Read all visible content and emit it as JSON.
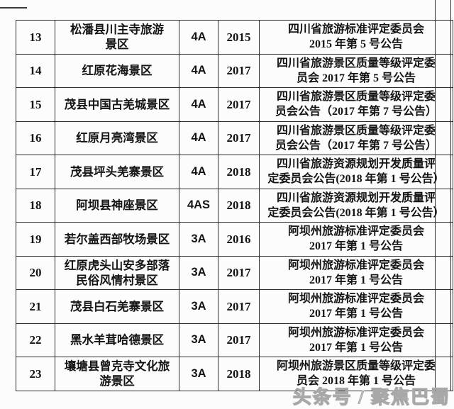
{
  "page": {
    "background": "#fcfcfd",
    "grid_color": "#2e2e2e",
    "text_color": "#141414"
  },
  "table": {
    "column_keys": [
      "index",
      "name",
      "grade",
      "year",
      "announcement"
    ],
    "rows": [
      {
        "index": "13",
        "name": "松潘县川主寺旅游\n景区",
        "grade": "4A",
        "year": "2015",
        "announcement": "四川省旅游标准评定委员会\n2015 年第 5 号公告"
      },
      {
        "index": "14",
        "name": "红原花海景区",
        "grade": "4A",
        "year": "2017",
        "announcement": "四川省旅游景区质量等级评定委\n员会 2017 年第 5 号公告"
      },
      {
        "index": "15",
        "name": "茂县中国古羌城景区",
        "grade": "4A",
        "year": "2017",
        "announcement": "四川省旅游景区质量等级评定委\n员会公告（2017 年第 7 号公告）"
      },
      {
        "index": "16",
        "name": "红原月亮湾景区",
        "grade": "4A",
        "year": "2017",
        "announcement": "四川省旅游景区质量等级评定委\n员会公告（2017 年第 7 号公告）"
      },
      {
        "index": "17",
        "name": "茂县坪头羌寨景区",
        "grade": "4A",
        "year": "2018",
        "announcement": "四川省旅游资源规划开发质量评\n定委员会公告(2018 年第 1 号公告）"
      },
      {
        "index": "18",
        "name": "阿坝县神座景区",
        "grade": "4AS",
        "year": "2018",
        "announcement": "四川省旅游资源规划开发质量评\n定委员会公告(2018 年第 1 号公告）"
      },
      {
        "index": "19",
        "name": "若尔盖西部牧场景区",
        "grade": "3A",
        "year": "2016",
        "announcement": "阿坝州旅游标准评定委员会\n2017 年第 1 号公告"
      },
      {
        "index": "20",
        "name": "红原虎头山安多部落\n民俗风情村景区",
        "grade": "3A",
        "year": "2017",
        "announcement": "阿坝州旅游标准评定委员会\n2017 年第 1 号公告"
      },
      {
        "index": "21",
        "name": "茂县白石羌寨景区",
        "grade": "3A",
        "year": "2017",
        "announcement": "阿坝州旅游标准评定委员会\n2017 年第 1 号公告"
      },
      {
        "index": "22",
        "name": "黑水羊茸哈德景区",
        "grade": "3A",
        "year": "2017",
        "announcement": "阿坝州旅游标准评定委员会\n2017 年第 1 号公告"
      },
      {
        "index": "23",
        "name": "壤塘县曾克寺文化旅\n游景区",
        "grade": "3A",
        "year": "2018",
        "announcement": "阿坝州旅游景区质量等级评定委\n员会 2018 年第 1 号公告"
      }
    ]
  },
  "watermark": {
    "text": "头条号 / 聚焦巴蜀",
    "color": "#a8a8a8"
  }
}
